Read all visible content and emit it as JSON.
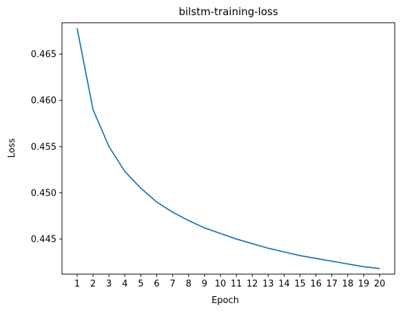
{
  "chart_data": {
    "type": "line",
    "title": "bilstm-training-loss",
    "xlabel": "Epoch",
    "ylabel": "Loss",
    "x": [
      1,
      2,
      3,
      4,
      5,
      6,
      7,
      8,
      9,
      10,
      11,
      12,
      13,
      14,
      15,
      16,
      17,
      18,
      19,
      20
    ],
    "series": [
      {
        "values": [
          0.4678,
          0.459,
          0.455,
          0.4523,
          0.4505,
          0.449,
          0.4479,
          0.447,
          0.4462,
          0.4456,
          0.445,
          0.4445,
          0.444,
          0.4436,
          0.4432,
          0.4429,
          0.4426,
          0.4423,
          0.442,
          0.4418
        ],
        "color": "#1f77b4"
      }
    ],
    "xlim": [
      0.05,
      20.95
    ],
    "ylim": [
      0.4412,
      0.4684
    ],
    "xticks": [
      1,
      2,
      3,
      4,
      5,
      6,
      7,
      8,
      9,
      10,
      11,
      12,
      13,
      14,
      15,
      16,
      17,
      18,
      19,
      20
    ],
    "yticks": [
      0.445,
      0.45,
      0.455,
      0.46,
      0.465
    ],
    "ytick_labels": [
      "0.445",
      "0.450",
      "0.455",
      "0.460",
      "0.465"
    ],
    "grid": false,
    "legend": "none"
  }
}
